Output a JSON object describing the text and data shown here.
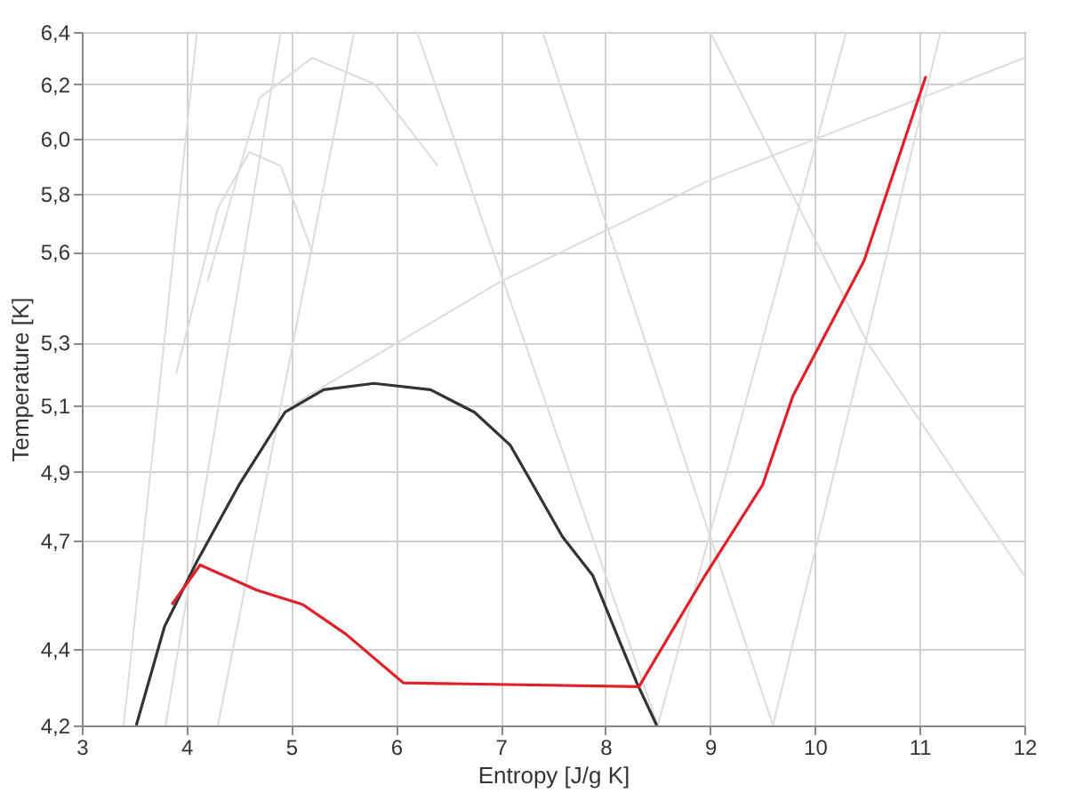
{
  "chart_data": {
    "type": "line",
    "xlabel": "Entropy [J/g K]",
    "ylabel": "Temperature [K]",
    "xlim": [
      3,
      12
    ],
    "xticks": [
      3,
      4,
      5,
      6,
      7,
      8,
      9,
      10,
      11,
      12
    ],
    "ylim": [
      4.2,
      6.4
    ],
    "log": "y",
    "yticks": [
      {
        "value": 4.2,
        "label": "4,2"
      },
      {
        "value": 4.4,
        "label": "4,4"
      },
      {
        "value": 4.7,
        "label": "4,7"
      },
      {
        "value": 4.9,
        "label": "4,9"
      },
      {
        "value": 5.1,
        "label": "5,1"
      },
      {
        "value": 5.3,
        "label": "5,3"
      },
      {
        "value": 5.6,
        "label": "5,6"
      },
      {
        "value": 5.8,
        "label": "5,8"
      },
      {
        "value": 6.0,
        "label": "6,0"
      },
      {
        "value": 6.2,
        "label": "6,2"
      },
      {
        "value": 6.4,
        "label": "6,4"
      }
    ],
    "grid": true,
    "line_style": "solid",
    "marker": "none",
    "series": [
      {
        "color": "#dcdcdc",
        "x": [
          3.4,
          4.1
        ],
        "values": [
          4.2,
          6.4
        ]
      },
      {
        "color": "#dcdcdc",
        "x": [
          3.8,
          4.9
        ],
        "values": [
          4.2,
          6.4
        ]
      },
      {
        "color": "#dcdcdc",
        "x": [
          4.3,
          5.6
        ],
        "values": [
          4.2,
          6.4
        ]
      },
      {
        "color": "#dcdcdc",
        "x": [
          3.9,
          4.3,
          4.6,
          4.9,
          5.2
        ],
        "values": [
          5.2,
          5.75,
          5.95,
          5.9,
          5.6
        ]
      },
      {
        "color": "#dcdcdc",
        "x": [
          4.2,
          4.7,
          5.2,
          5.8,
          6.4
        ],
        "values": [
          5.5,
          6.15,
          6.3,
          6.2,
          5.9
        ]
      },
      {
        "color": "#dcdcdc",
        "x": [
          6.2,
          8.5
        ],
        "values": [
          6.4,
          4.2
        ]
      },
      {
        "color": "#dcdcdc",
        "x": [
          7.4,
          9.6
        ],
        "values": [
          6.4,
          4.2
        ]
      },
      {
        "color": "#dcdcdc",
        "x": [
          8.5,
          10.3
        ],
        "values": [
          4.2,
          6.4
        ]
      },
      {
        "color": "#dcdcdc",
        "x": [
          9.6,
          11.2
        ],
        "values": [
          4.2,
          6.4
        ]
      },
      {
        "color": "#dcdcdc",
        "x": [
          5.0,
          7.0,
          9.0,
          12.0
        ],
        "values": [
          5.1,
          5.5,
          5.85,
          6.3
        ]
      },
      {
        "color": "#dcdcdc",
        "x": [
          9.0,
          10.5,
          12.0
        ],
        "values": [
          6.4,
          5.3,
          4.6
        ]
      },
      {
        "color": "#333333",
        "x": [
          3.52,
          3.79,
          4.1,
          4.5,
          4.94,
          5.31,
          5.79,
          6.33,
          6.75,
          7.09,
          7.31,
          7.59,
          7.88,
          8.15,
          8.3,
          8.49
        ],
        "values": [
          4.2,
          4.46,
          4.64,
          4.86,
          5.08,
          5.15,
          5.17,
          5.15,
          5.08,
          4.98,
          4.86,
          4.71,
          4.6,
          4.41,
          4.31,
          4.2
        ]
      },
      {
        "color": "#e0202a",
        "x": [
          3.86,
          4.13,
          4.67,
          5.11,
          5.52,
          6.07,
          8.32,
          8.95,
          9.5,
          9.79,
          10.47,
          11.06
        ],
        "values": [
          4.52,
          4.63,
          4.56,
          4.52,
          4.44,
          4.31,
          4.3,
          4.6,
          4.86,
          5.13,
          5.57,
          6.23
        ]
      }
    ]
  }
}
